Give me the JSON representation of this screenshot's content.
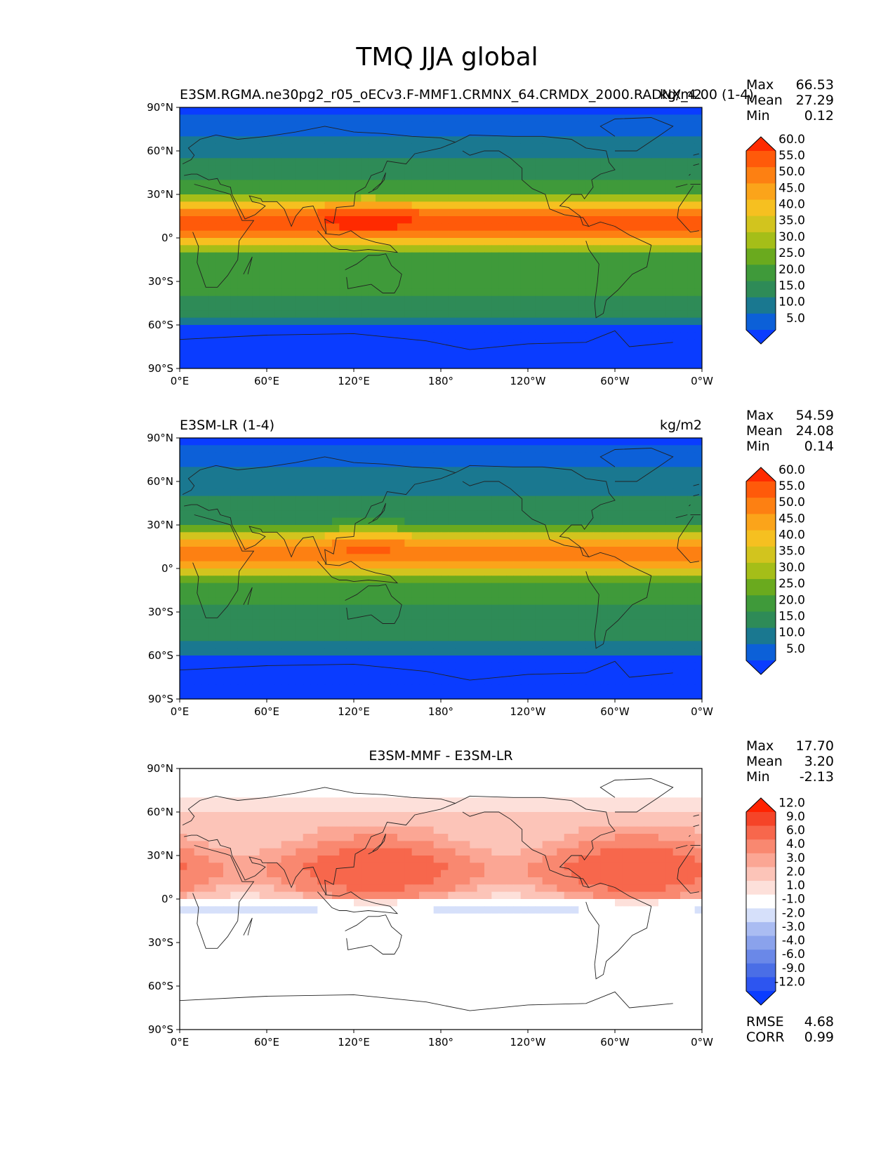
{
  "chart_data": {
    "type": "contour-map",
    "title": "TMQ JJA global",
    "lat_ticks": [
      "90°N",
      "60°N",
      "30°N",
      "0°",
      "30°S",
      "60°S",
      "90°S"
    ],
    "lon_ticks": [
      "0°E",
      "60°E",
      "120°E",
      "180°",
      "120°W",
      "60°W",
      "0°W"
    ],
    "panels": [
      {
        "id": "test",
        "title_left": "E3SM.RGMA.ne30pg2_r05_oECv3.F-MMF1.CRMNX_64.CRMDX_2000.RADNX_4.00 (1-4)",
        "title_center": "",
        "units": "kg/m2",
        "stats": {
          "max_label": "Max",
          "max": "66.53",
          "mean_label": "Mean",
          "mean": "27.29",
          "min_label": "Min",
          "min": "0.12"
        },
        "colorbar_levels": [
          "5.0",
          "10.0",
          "15.0",
          "20.0",
          "25.0",
          "30.0",
          "35.0",
          "40.0",
          "45.0",
          "50.0",
          "55.0",
          "60.0"
        ],
        "colorbar_colors": [
          "#0a3cff",
          "#0c60d8",
          "#1a7890",
          "#2e8b57",
          "#3f9a3a",
          "#6aaa1e",
          "#a5be18",
          "#d2c41e",
          "#f6c020",
          "#fba41a",
          "#fd8012",
          "#ff5a0a",
          "#ff2a00"
        ]
      },
      {
        "id": "reference",
        "title_left": "E3SM-LR (1-4)",
        "title_center": "",
        "units": "kg/m2",
        "stats": {
          "max_label": "Max",
          "max": "54.59",
          "mean_label": "Mean",
          "mean": "24.08",
          "min_label": "Min",
          "min": "0.14"
        },
        "colorbar_levels": [
          "5.0",
          "10.0",
          "15.0",
          "20.0",
          "25.0",
          "30.0",
          "35.0",
          "40.0",
          "45.0",
          "50.0",
          "55.0",
          "60.0"
        ],
        "colorbar_colors": [
          "#0a3cff",
          "#0c60d8",
          "#1a7890",
          "#2e8b57",
          "#3f9a3a",
          "#6aaa1e",
          "#a5be18",
          "#d2c41e",
          "#f6c020",
          "#fba41a",
          "#fd8012",
          "#ff5a0a",
          "#ff2a00"
        ]
      },
      {
        "id": "difference",
        "title_left": "",
        "title_center": "E3SM-MMF - E3SM-LR",
        "units": "",
        "stats": {
          "max_label": "Max",
          "max": "17.70",
          "mean_label": "Mean",
          "mean": "3.20",
          "min_label": "Min",
          "min": "-2.13"
        },
        "colorbar_levels": [
          "-12.0",
          "-9.0",
          "-6.0",
          "-4.0",
          "-3.0",
          "-2.0",
          "-1.0",
          "1.0",
          "2.0",
          "3.0",
          "4.0",
          "6.0",
          "9.0",
          "12.0"
        ],
        "colorbar_colors": [
          "#0a3cff",
          "#2d55f0",
          "#4a6ee6",
          "#6a88e8",
          "#8aa2ec",
          "#aabcf2",
          "#d6e0fa",
          "#ffffff",
          "#fde0da",
          "#fcc4b8",
          "#fba694",
          "#f98870",
          "#f7674c",
          "#f54428",
          "#ff2200"
        ],
        "rmse_label": "RMSE",
        "rmse": "4.68",
        "corr_label": "CORR",
        "corr": "0.99"
      }
    ]
  }
}
